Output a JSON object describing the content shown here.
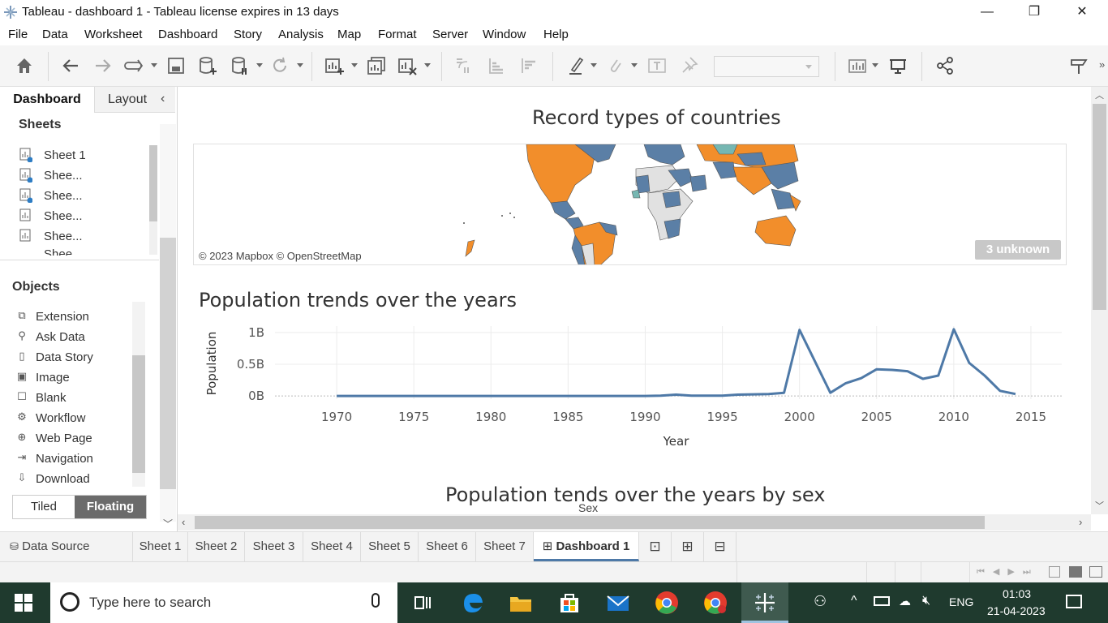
{
  "window": {
    "title": "Tableau - dashboard 1 - Tableau license expires in 13 days",
    "minimize": "—",
    "restore": "❐",
    "close": "✕"
  },
  "menu": [
    "File",
    "Data",
    "Worksheet",
    "Dashboard",
    "Story",
    "Analysis",
    "Map",
    "Format",
    "Server",
    "Window",
    "Help"
  ],
  "left_panel": {
    "tab_dashboard": "Dashboard",
    "tab_layout": "Layout",
    "collapse": "‹",
    "sheets_title": "Sheets",
    "sheets": [
      "Sheet 1",
      "Shee...",
      "Shee...",
      "Shee...",
      "Shee..."
    ],
    "sheet_partial": "Shee",
    "objects_title": "Objects",
    "objects": [
      {
        "label": "Extension",
        "icon": "extension-icon"
      },
      {
        "label": "Ask Data",
        "icon": "ask-data-icon"
      },
      {
        "label": "Data Story",
        "icon": "data-story-icon"
      },
      {
        "label": "Image",
        "icon": "image-icon"
      },
      {
        "label": "Blank",
        "icon": "blank-icon"
      },
      {
        "label": "Workflow",
        "icon": "workflow-icon"
      },
      {
        "label": "Web Page",
        "icon": "web-page-icon"
      },
      {
        "label": "Navigation",
        "icon": "navigation-icon"
      },
      {
        "label": "Download",
        "icon": "download-icon"
      }
    ],
    "tiled": "Tiled",
    "floating": "Floating"
  },
  "dashboard": {
    "map_title": "Record types of countries",
    "map_credit": "© 2023 Mapbox © OpenStreetMap",
    "unknown_badge": "3 unknown",
    "line_title": "Population trends over the years",
    "sex_title": "Population tends over the years by sex",
    "sex_label": "Sex"
  },
  "chart_data": {
    "type": "line",
    "title": "Population trends over the years",
    "xlabel": "Year",
    "ylabel": "Population",
    "x_ticks": [
      "1970",
      "1975",
      "1980",
      "1985",
      "1990",
      "1995",
      "2000",
      "2005",
      "2010",
      "2015"
    ],
    "y_ticks": [
      "0B",
      "0.5B",
      "1B"
    ],
    "xlim": [
      1966,
      2017
    ],
    "ylim": [
      -0.05,
      1.1
    ],
    "grid": true,
    "series": [
      {
        "color": "#4e79a7",
        "x": [
          1970,
          1975,
          1980,
          1985,
          1990,
          1991,
          1992,
          1993,
          1995,
          1996,
          1998,
          1999,
          2000,
          2002,
          2003,
          2004,
          2005,
          2006,
          2007,
          2008,
          2009,
          2010,
          2011,
          2012,
          2013,
          2014
        ],
        "y": [
          0.0,
          0.0,
          0.0,
          0.0,
          0.0,
          0.005,
          0.02,
          0.005,
          0.005,
          0.02,
          0.03,
          0.05,
          1.04,
          0.05,
          0.2,
          0.28,
          0.42,
          0.41,
          0.39,
          0.27,
          0.32,
          1.05,
          0.52,
          0.32,
          0.08,
          0.03
        ]
      }
    ]
  },
  "sheet_tabs": {
    "data_source": "Data Source",
    "tabs": [
      "Sheet 1",
      "Sheet 2",
      "Sheet 3",
      "Sheet 4",
      "Sheet 5",
      "Sheet 6",
      "Sheet 7"
    ],
    "active": "Dashboard 1"
  },
  "taskbar": {
    "search_placeholder": "Type here to search",
    "language": "ENG",
    "time": "01:03",
    "date": "21-04-2023"
  },
  "colors": {
    "accent": "#4e79a7",
    "map_orange": "#f28e2b",
    "map_blue": "#5b7fa6",
    "map_teal": "#76b7b2",
    "taskbar": "#1f3a2e"
  }
}
